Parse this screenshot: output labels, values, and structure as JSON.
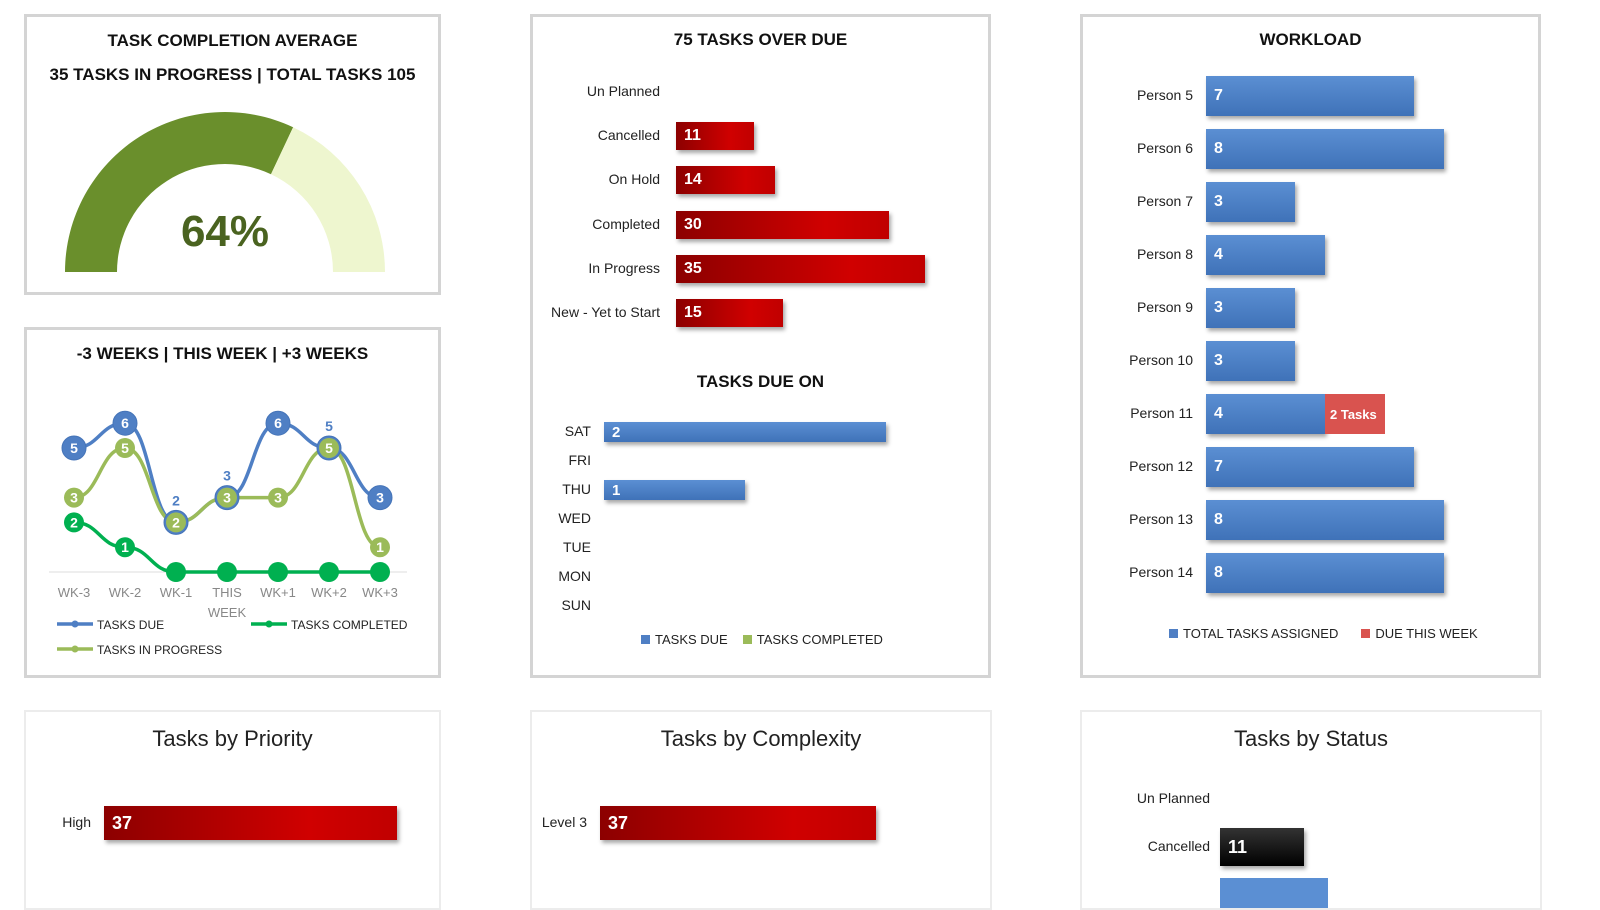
{
  "chart_data": [
    {
      "type": "gauge",
      "title": "TASK COMPLETION AVERAGE",
      "subtitle": "35 TASKS IN PROGRESS | TOTAL TASKS 105",
      "value_percent": 64,
      "label": "64%",
      "colors": {
        "filled": "#6a8f2c",
        "remaining": "#eef6cf"
      }
    },
    {
      "type": "line",
      "title": "-3 WEEKS | THIS WEEK | +3 WEEKS",
      "categories": [
        "WK-3",
        "WK-2",
        "WK-1",
        "THIS WEEK",
        "WK+1",
        "WK+2",
        "WK+3"
      ],
      "series": [
        {
          "name": "TASKS DUE",
          "color": "#4f7fc4",
          "values": [
            5,
            6,
            2,
            3,
            6,
            5,
            3
          ]
        },
        {
          "name": "TASKS IN PROGRESS",
          "color": "#9bbb59",
          "values": [
            3,
            5,
            2,
            3,
            3,
            5,
            1
          ]
        },
        {
          "name": "TASKS COMPLETED",
          "color": "#00b050",
          "values": [
            2,
            1,
            0,
            0,
            0,
            0,
            0
          ]
        }
      ],
      "legend": "bottom"
    },
    {
      "type": "bar",
      "orientation": "horizontal",
      "title": "75 TASKS OVER DUE",
      "categories": [
        "Un Planned",
        "Cancelled",
        "On Hold",
        "Completed",
        "In Progress",
        "New - Yet to Start"
      ],
      "values": [
        0,
        11,
        14,
        30,
        35,
        15
      ],
      "color": "#c00000"
    },
    {
      "type": "bar",
      "orientation": "horizontal",
      "title": "TASKS DUE ON",
      "categories": [
        "SAT",
        "FRI",
        "THU",
        "WED",
        "TUE",
        "MON",
        "SUN"
      ],
      "values": [
        2,
        0,
        1,
        0,
        0,
        0,
        0
      ],
      "legend": [
        "TASKS DUE",
        "TASKS COMPLETED"
      ],
      "legend_colors": [
        "#4f7fc4",
        "#9bbb59"
      ]
    },
    {
      "type": "bar",
      "orientation": "horizontal",
      "stacked": true,
      "title": "WORKLOAD",
      "categories": [
        "Person 5",
        "Person 6",
        "Person 7",
        "Person 8",
        "Person 9",
        "Person 10",
        "Person 11",
        "Person 12",
        "Person 13",
        "Person 14"
      ],
      "series": [
        {
          "name": "TOTAL TASKS ASSIGNED",
          "color": "#4f7fc4",
          "values": [
            7,
            8,
            3,
            4,
            3,
            3,
            4,
            7,
            8,
            8
          ]
        },
        {
          "name": "DUE THIS WEEK",
          "color": "#d9534f",
          "values": [
            0,
            0,
            0,
            0,
            0,
            0,
            2,
            0,
            0,
            0
          ],
          "labels": [
            "",
            "",
            "",
            "",
            "",
            "",
            "2  Tasks",
            "",
            "",
            ""
          ]
        }
      ],
      "legend": "bottom"
    },
    {
      "type": "bar",
      "orientation": "horizontal",
      "title": "Tasks by Priority",
      "categories": [
        "High"
      ],
      "values": [
        37
      ],
      "color": "#c00000"
    },
    {
      "type": "bar",
      "orientation": "horizontal",
      "title": "Tasks by Complexity",
      "categories": [
        "Level 3"
      ],
      "values": [
        37
      ],
      "color": "#c00000"
    },
    {
      "type": "bar",
      "orientation": "horizontal",
      "title": "Tasks by Status",
      "categories": [
        "Un Planned",
        "Cancelled"
      ],
      "values": [
        0,
        11
      ],
      "colors": [
        "#000000",
        "#000000"
      ]
    }
  ]
}
